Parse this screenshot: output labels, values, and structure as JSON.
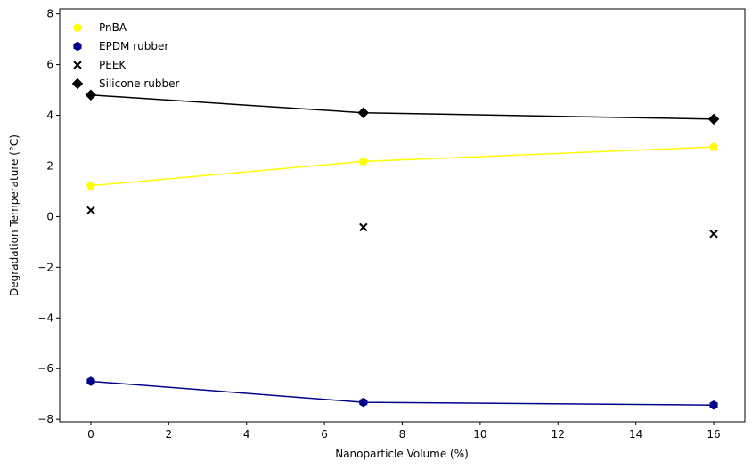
{
  "chart_data": {
    "type": "line",
    "title": "",
    "xlabel": "Nanoparticle Volume (%)",
    "ylabel": "Degradation Temperature (°C)",
    "xlim": [
      -0.8,
      16.8
    ],
    "ylim": [
      -8.1,
      8.2
    ],
    "x_ticks": [
      0,
      2,
      4,
      6,
      8,
      10,
      12,
      14,
      16
    ],
    "y_ticks": [
      -8,
      -6,
      -4,
      -2,
      0,
      2,
      4,
      6,
      8
    ],
    "x": [
      0,
      7,
      16
    ],
    "grid": false,
    "legend_position": "top-left",
    "series": [
      {
        "name": "PnBA",
        "values": [
          1.22,
          2.18,
          2.75
        ],
        "color": "#ffff00",
        "marker": "pentagon",
        "line": true
      },
      {
        "name": "EPDM rubber",
        "values": [
          -6.5,
          -7.33,
          -7.44
        ],
        "color": "#00008b",
        "marker": "hexagon",
        "line": true
      },
      {
        "name": "PEEK",
        "values": [
          0.25,
          -0.42,
          -0.68
        ],
        "color": "#000000",
        "marker": "x",
        "line": false
      },
      {
        "name": "Silicone rubber",
        "values": [
          4.8,
          4.1,
          3.85
        ],
        "color": "#000000",
        "marker": "diamond",
        "line": true
      }
    ]
  }
}
